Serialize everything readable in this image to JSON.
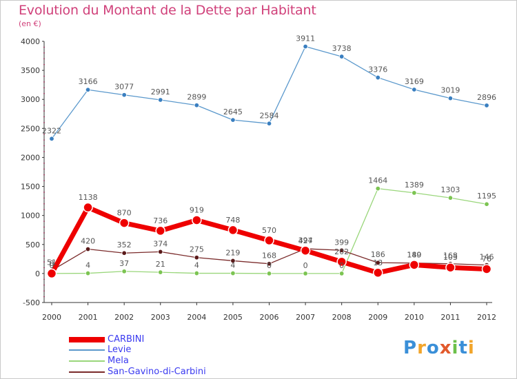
{
  "title": "Evolution du Montant de la Dette par Habitant",
  "subtitle": "(en €)",
  "logo": {
    "text": "Proxiti",
    "colors": [
      "#3a8fd8",
      "#f2a52b",
      "#3a8fd8",
      "#e25a2c",
      "#6cc04a",
      "#3a8fd8",
      "#f2a52b"
    ]
  },
  "chart_data": {
    "type": "line",
    "x": [
      2000,
      2001,
      2002,
      2003,
      2004,
      2005,
      2006,
      2007,
      2008,
      2009,
      2010,
      2011,
      2012
    ],
    "ylim": [
      -500,
      4000
    ],
    "yticks": [
      -500,
      0,
      500,
      1000,
      1500,
      2000,
      2500,
      3000,
      3500,
      4000
    ],
    "grid": false,
    "legend_position": "bottom-left",
    "series": [
      {
        "name": "CARBINI",
        "color": "#ee0000",
        "values": [
          0,
          1138,
          870,
          736,
          919,
          748,
          570,
          394,
          202,
          13,
          149,
          103,
          76
        ],
        "labels": [
          "0",
          "1138",
          "870",
          "736",
          "919",
          "748",
          "570",
          "394",
          "202",
          "13",
          "149",
          "103",
          "76"
        ]
      },
      {
        "name": "Levie",
        "color": "#5a98cc",
        "values": [
          2322,
          3166,
          3077,
          2991,
          2899,
          2645,
          2584,
          3911,
          3738,
          3376,
          3169,
          3019,
          2896
        ],
        "labels": [
          "2322",
          "3166",
          "3077",
          "2991",
          "2899",
          "2645",
          "2584",
          "3911",
          "3738",
          "3376",
          "3169",
          "3019",
          "2896"
        ]
      },
      {
        "name": "Mela",
        "color": "#99d67a",
        "values": [
          0,
          4,
          37,
          21,
          4,
          4,
          0,
          0,
          0,
          1464,
          1389,
          1303,
          1195
        ],
        "labels": [
          "0",
          "4",
          "37",
          "21",
          "4",
          "4",
          "0",
          "0",
          "0",
          "1464",
          "1389",
          "1303",
          "1195"
        ]
      },
      {
        "name": "San-Gavino-di-Carbini",
        "color": "#7a2a2a",
        "values": [
          51,
          420,
          352,
          374,
          275,
          219,
          168,
          427,
          399,
          186,
          180,
          168,
          146
        ],
        "labels": [
          "51",
          "420",
          "352",
          "374",
          "275",
          "219",
          "168",
          "427",
          "399",
          "186",
          "180",
          "168",
          "146"
        ]
      }
    ]
  }
}
